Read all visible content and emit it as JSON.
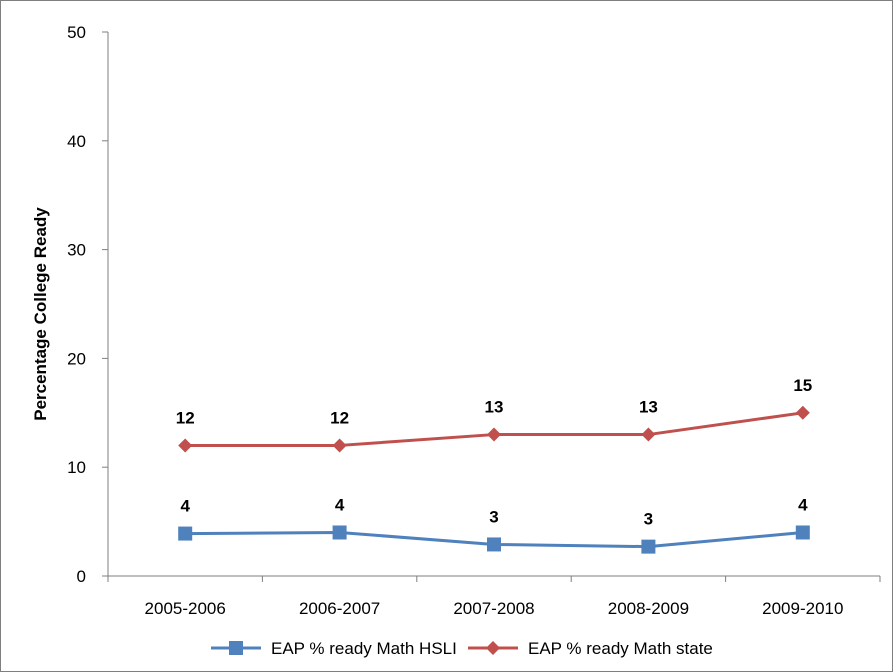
{
  "chart_data": {
    "type": "line",
    "title": "",
    "xlabel": "",
    "ylabel": "Percentage College Ready",
    "categories": [
      "2005-2006",
      "2006-2007",
      "2007-2008",
      "2008-2009",
      "2009-2010"
    ],
    "ylim": [
      0,
      50
    ],
    "yticks": [
      0,
      10,
      20,
      30,
      40,
      50
    ],
    "grid": false,
    "legend": "bottom",
    "series": [
      {
        "name": "EAP % ready Math HSLI",
        "values": [
          3.9,
          4.0,
          2.9,
          2.7,
          4.0
        ],
        "labels": [
          "4",
          "4",
          "3",
          "3",
          "4"
        ],
        "color": "#4F81BD",
        "marker": "square"
      },
      {
        "name": "EAP % ready Math state",
        "values": [
          12,
          12,
          13,
          13,
          15
        ],
        "labels": [
          "12",
          "12",
          "13",
          "13",
          "15"
        ],
        "color": "#C0504D",
        "marker": "diamond"
      }
    ]
  }
}
